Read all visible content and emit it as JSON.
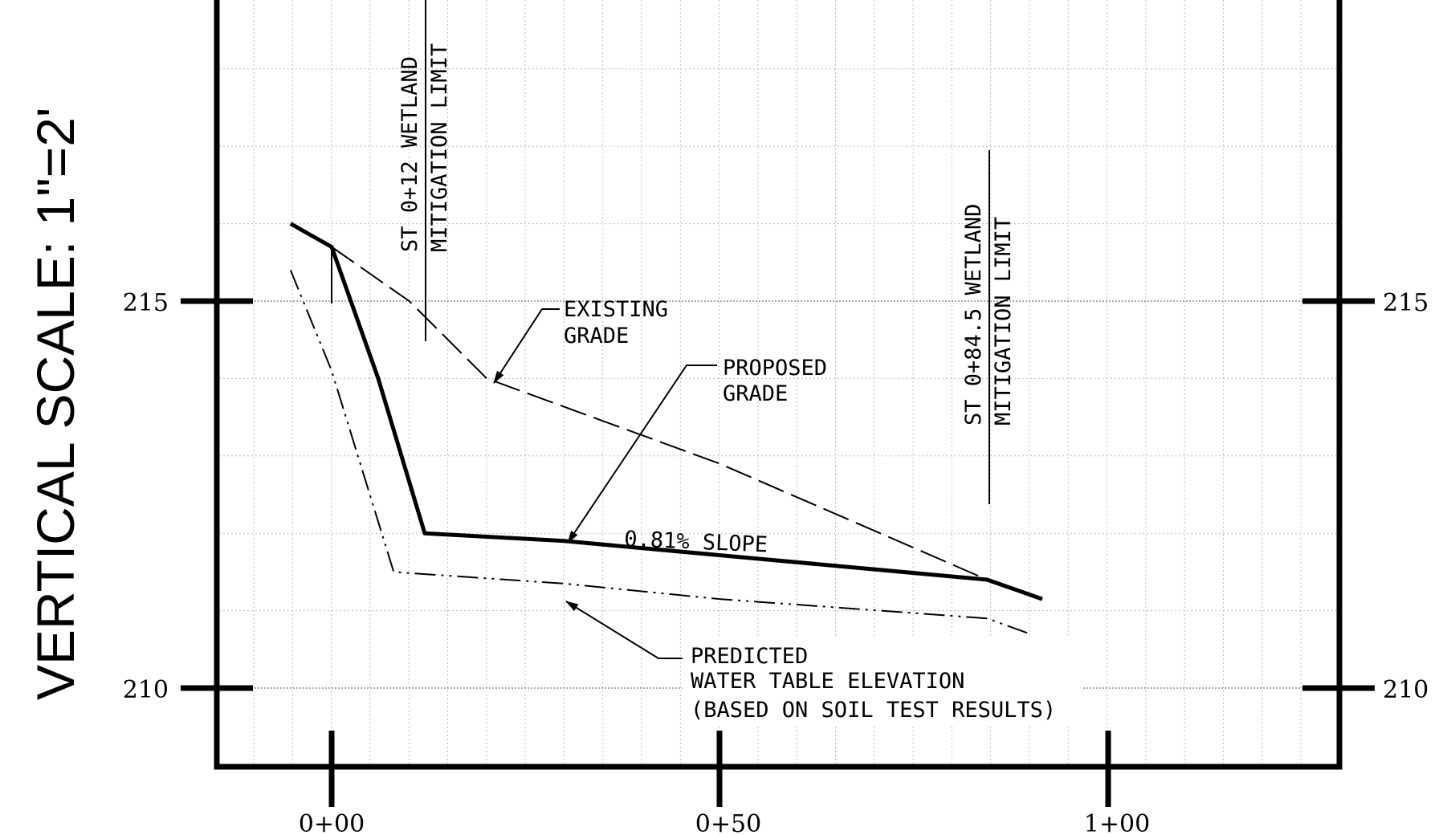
{
  "vertical_scale_label": "VERTICAL SCALE: 1\"=2'",
  "elevation_labels": {
    "e215_left": "215",
    "e210_left": "210",
    "e215_right": "215",
    "e210_right": "210"
  },
  "station_labels": {
    "s0": "0+00",
    "s50": "0+50",
    "s100": "1+00"
  },
  "wetland_limits": [
    {
      "line1": "ST 0+12 WETLAND",
      "line2": "MITIGATION LIMIT",
      "station": 12
    },
    {
      "line1": "ST 0+84.5 WETLAND",
      "line2": "MITIGATION LIMIT",
      "station": 84.5
    }
  ],
  "annotations": {
    "existing_grade": {
      "line1": "EXISTING",
      "line2": "GRADE"
    },
    "proposed_grade": {
      "line1": "PROPOSED",
      "line2": "GRADE"
    },
    "slope": "0.81% SLOPE",
    "water_table": {
      "line1": "PREDICTED",
      "line2": "WATER TABLE ELEVATION",
      "line3": "(BASED ON SOIL TEST RESULTS)"
    }
  },
  "chart_data": {
    "type": "line",
    "x_ticks": [
      "0+00",
      "0+50",
      "1+00"
    ],
    "y_ticks": [
      "210",
      "215"
    ],
    "xlim": [
      -15,
      130
    ],
    "ylim": [
      209,
      219
    ],
    "grid": true,
    "series": [
      {
        "key": "existing",
        "style": "dashed",
        "points": [
          [
            0,
            215.7
          ],
          [
            10,
            215.0
          ],
          [
            20,
            214.0
          ],
          [
            50,
            212.9
          ],
          [
            84.5,
            211.4
          ]
        ]
      },
      {
        "key": "proposed",
        "style": "solid-bold",
        "points": [
          [
            -5.3,
            216.0
          ],
          [
            0,
            215.7
          ],
          [
            6,
            214.0
          ],
          [
            12,
            212.0
          ],
          [
            30,
            211.9
          ],
          [
            84.5,
            211.4
          ],
          [
            91.6,
            211.15
          ]
        ]
      },
      {
        "key": "water_table",
        "style": "dash-dot",
        "points": [
          [
            -5.3,
            215.4
          ],
          [
            0,
            214.1
          ],
          [
            8,
            211.5
          ],
          [
            30,
            211.35
          ],
          [
            50,
            211.15
          ],
          [
            84.5,
            210.9
          ],
          [
            90,
            210.7
          ]
        ]
      }
    ]
  }
}
